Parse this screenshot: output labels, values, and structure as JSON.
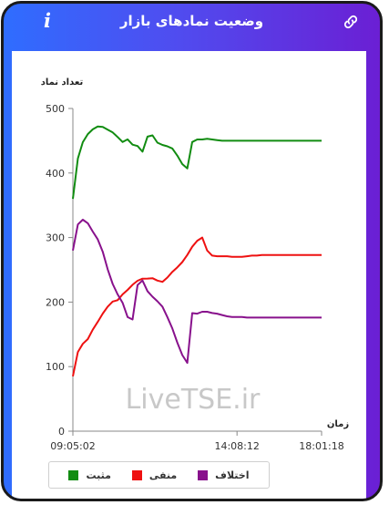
{
  "header": {
    "title": "وضعیت نمادهای بازار",
    "info_glyph": "i",
    "info_icon": "info-icon",
    "link_icon": "link-icon"
  },
  "colors": {
    "positive": "#118c11",
    "negative": "#ee1111",
    "difference": "#88118c",
    "header_gradient_start": "#2f6dff",
    "header_gradient_end": "#6b1fd4"
  },
  "watermark": "LiveTSE.ir",
  "legend": [
    {
      "label": "مثبت",
      "color": "#118c11"
    },
    {
      "label": "منفی",
      "color": "#ee1111"
    },
    {
      "label": "اختلاف",
      "color": "#88118c"
    }
  ],
  "chart_data": {
    "type": "line",
    "ylabel": "تعداد نماد",
    "xlabel": "زمان",
    "ylim": [
      0,
      500
    ],
    "yticks": [
      "0",
      "100",
      "200",
      "300",
      "400",
      "500"
    ],
    "xticks": [
      "09:05:02",
      "14:08:12",
      "18:01:18"
    ],
    "x": [
      0,
      2,
      4,
      6,
      8,
      10,
      12,
      14,
      16,
      18,
      20,
      22,
      24,
      26,
      28,
      30,
      32,
      34,
      36,
      38,
      40,
      42,
      44,
      46,
      48,
      50,
      52,
      54,
      56,
      58,
      60,
      62,
      64,
      66,
      68,
      70,
      72,
      74,
      76,
      78,
      80,
      82,
      84,
      86,
      88,
      90,
      92,
      94,
      96,
      98,
      100
    ],
    "grid": false,
    "legend_position": "bottom",
    "series": [
      {
        "name": "مثبت",
        "color": "#118c11",
        "values": [
          360,
          420,
          445,
          460,
          470,
          475,
          472,
          465,
          460,
          455,
          450,
          455,
          445,
          440,
          430,
          455,
          460,
          450,
          445,
          440,
          435,
          425,
          415,
          410,
          450,
          452,
          452,
          453,
          452,
          451,
          450,
          450,
          450,
          450,
          450,
          450,
          450,
          450,
          450,
          450,
          450,
          450,
          450,
          450,
          450,
          450,
          450,
          450,
          450,
          450,
          450
        ]
      },
      {
        "name": "منفی",
        "color": "#ee1111",
        "values": [
          85,
          120,
          135,
          145,
          160,
          170,
          180,
          190,
          200,
          205,
          215,
          220,
          225,
          230,
          235,
          238,
          240,
          235,
          230,
          235,
          245,
          255,
          265,
          275,
          285,
          295,
          300,
          280,
          272,
          271,
          271,
          271,
          270,
          270,
          270,
          271,
          272,
          272,
          273,
          273,
          273,
          273,
          273,
          273,
          273,
          273,
          273,
          273,
          273,
          273,
          273
        ]
      },
      {
        "name": "اختلاف",
        "color": "#88118c",
        "values": [
          280,
          320,
          330,
          325,
          310,
          295,
          275,
          250,
          230,
          215,
          200,
          175,
          170,
          225,
          235,
          220,
          210,
          200,
          190,
          175,
          160,
          140,
          120,
          105,
          180,
          182,
          185,
          185,
          183,
          182,
          180,
          178,
          177,
          177,
          177,
          176,
          176,
          176,
          176,
          176,
          176,
          176,
          176,
          176,
          176,
          176,
          176,
          176,
          176,
          176,
          176
        ]
      }
    ]
  }
}
